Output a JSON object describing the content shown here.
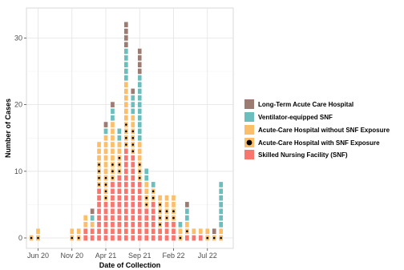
{
  "chart_data": {
    "type": "bar",
    "stacked": true,
    "style": "waffle",
    "xlabel": "Date of Collection",
    "ylabel": "Number of Cases",
    "ylim": [
      0,
      33
    ],
    "yticks": [
      "0",
      "10",
      "20",
      "30"
    ],
    "xticks": [
      {
        "label": "Jun 20",
        "month": "2020-06"
      },
      {
        "label": "Nov 20",
        "month": "2020-11"
      },
      {
        "label": "Apr 21",
        "month": "2021-04"
      },
      {
        "label": "Sep 21",
        "month": "2021-09"
      },
      {
        "label": "Feb 22",
        "month": "2022-02"
      },
      {
        "label": "Jul 22",
        "month": "2022-07"
      }
    ],
    "grid": true,
    "legend_position": "right",
    "series": [
      {
        "name": "Skilled Nursing Facility (SNF)",
        "color": "#F8766D",
        "marker": "square"
      },
      {
        "name": "Acute-Care Hospital with SNF Exposure",
        "color": "#FBBF6B",
        "marker": "dot"
      },
      {
        "name": "Acute-Care Hospital without SNF Exposure",
        "color": "#FBBF6B",
        "marker": "square"
      },
      {
        "name": "Ventilator-equipped SNF",
        "color": "#6CBEBC",
        "marker": "square"
      },
      {
        "name": "Long-Term Acute Care Hospital",
        "color": "#9C7B72",
        "marker": "square"
      }
    ],
    "legend_order": [
      "Long-Term Acute Care Hospital",
      "Ventilator-equipped SNF",
      "Acute-Care Hospital without SNF Exposure",
      "Acute-Care Hospital with SNF Exposure",
      "Skilled Nursing Facility (SNF)"
    ],
    "months": [
      {
        "month": "2020-05",
        "counts": [
          0,
          1,
          0,
          0,
          0
        ]
      },
      {
        "month": "2020-06",
        "counts": [
          0,
          1,
          1,
          0,
          0
        ]
      },
      {
        "month": "2020-11",
        "counts": [
          0,
          1,
          1,
          0,
          0
        ]
      },
      {
        "month": "2020-12",
        "counts": [
          0,
          1,
          1,
          0,
          0
        ]
      },
      {
        "month": "2021-01",
        "counts": [
          2,
          0,
          2,
          0,
          0
        ]
      },
      {
        "month": "2021-02",
        "counts": [
          2,
          0,
          1,
          1,
          1
        ]
      },
      {
        "month": "2021-03",
        "counts": [
          8,
          4,
          3,
          0,
          0
        ]
      },
      {
        "month": "2021-04",
        "counts": [
          6,
          4,
          6,
          1,
          1
        ]
      },
      {
        "month": "2021-05",
        "counts": [
          9,
          3,
          6,
          2,
          1
        ]
      },
      {
        "month": "2021-06",
        "counts": [
          10,
          3,
          2,
          2,
          0
        ]
      },
      {
        "month": "2021-07",
        "counts": [
          14,
          4,
          6,
          5,
          4
        ]
      },
      {
        "month": "2021-08",
        "counts": [
          13,
          4,
          2,
          3,
          1
        ]
      },
      {
        "month": "2021-09",
        "counts": [
          9,
          3,
          3,
          10,
          4
        ]
      },
      {
        "month": "2021-10",
        "counts": [
          5,
          2,
          2,
          2,
          0
        ]
      },
      {
        "month": "2021-11",
        "counts": [
          6,
          2,
          0,
          1,
          0
        ]
      },
      {
        "month": "2021-12",
        "counts": [
          2,
          4,
          1,
          0,
          0
        ]
      },
      {
        "month": "2022-01",
        "counts": [
          3,
          2,
          2,
          0,
          0
        ]
      },
      {
        "month": "2022-02",
        "counts": [
          3,
          2,
          2,
          0,
          0
        ]
      },
      {
        "month": "2022-03",
        "counts": [
          0,
          1,
          1,
          1,
          0
        ]
      },
      {
        "month": "2022-04",
        "counts": [
          1,
          1,
          1,
          2,
          1
        ]
      },
      {
        "month": "2022-05",
        "counts": [
          1,
          0,
          1,
          0,
          0
        ]
      },
      {
        "month": "2022-06",
        "counts": [
          1,
          0,
          1,
          0,
          0
        ]
      },
      {
        "month": "2022-07",
        "counts": [
          0,
          1,
          1,
          0,
          0
        ]
      },
      {
        "month": "2022-08",
        "counts": [
          0,
          1,
          0,
          0,
          1
        ]
      },
      {
        "month": "2022-09",
        "counts": [
          0,
          1,
          1,
          7,
          0
        ]
      }
    ]
  }
}
